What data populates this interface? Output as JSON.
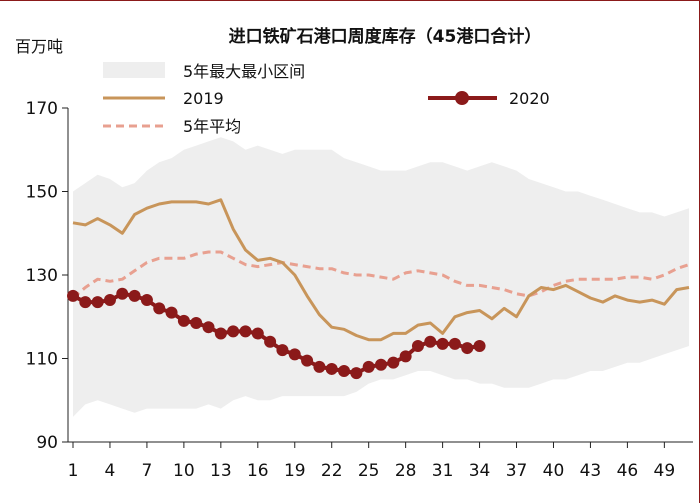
{
  "chart_data": {
    "type": "line",
    "title": "进口铁矿石港口周度库存（45港口合计）",
    "ylabel": "百万吨",
    "xlabel": "",
    "ylim": [
      90,
      170
    ],
    "y_ticks": [
      90,
      110,
      130,
      150,
      170
    ],
    "xlim": [
      1,
      51
    ],
    "x_ticks": [
      1,
      4,
      7,
      10,
      13,
      16,
      19,
      22,
      25,
      28,
      31,
      34,
      37,
      40,
      43,
      46,
      49
    ],
    "band": {
      "name": "5年最大最小区间",
      "color": "#eeeeee",
      "x": [
        1,
        2,
        3,
        4,
        5,
        6,
        7,
        8,
        9,
        10,
        11,
        12,
        13,
        14,
        15,
        16,
        17,
        18,
        19,
        20,
        21,
        22,
        23,
        24,
        25,
        26,
        27,
        28,
        29,
        30,
        31,
        32,
        33,
        34,
        35,
        36,
        37,
        38,
        39,
        40,
        41,
        42,
        43,
        44,
        45,
        46,
        47,
        48,
        49,
        50,
        51
      ],
      "upper": [
        150,
        152,
        154,
        153,
        151,
        152,
        155,
        157,
        158,
        160,
        161,
        162,
        163,
        162,
        160,
        161,
        160,
        159,
        160,
        160,
        160,
        160,
        158,
        157,
        156,
        155,
        155,
        155,
        156,
        157,
        157,
        156,
        155,
        156,
        157,
        156,
        155,
        153,
        152,
        151,
        150,
        150,
        149,
        148,
        147,
        146,
        145,
        145,
        144,
        145,
        146
      ],
      "lower": [
        96,
        99,
        100,
        99,
        98,
        97,
        98,
        98,
        98,
        98,
        98,
        99,
        98,
        100,
        101,
        100,
        100,
        101,
        101,
        101,
        101,
        101,
        101,
        102,
        104,
        105,
        105,
        106,
        107,
        107,
        106,
        105,
        105,
        104,
        104,
        103,
        103,
        103,
        104,
        105,
        105,
        106,
        107,
        107,
        108,
        109,
        109,
        110,
        111,
        112,
        113
      ]
    },
    "series": [
      {
        "name": "2019",
        "color": "#c8955a",
        "x": [
          1,
          2,
          3,
          4,
          5,
          6,
          7,
          8,
          9,
          10,
          11,
          12,
          13,
          14,
          15,
          16,
          17,
          18,
          19,
          20,
          21,
          22,
          23,
          24,
          25,
          26,
          27,
          28,
          29,
          30,
          31,
          32,
          33,
          34,
          35,
          36,
          37,
          38,
          39,
          40,
          41,
          42,
          43,
          44,
          45,
          46,
          47,
          48,
          49,
          50,
          51
        ],
        "values": [
          142.5,
          142,
          143.5,
          142,
          140,
          144.5,
          146,
          147,
          147.5,
          147.5,
          147.5,
          147,
          148,
          141,
          136,
          133.5,
          134,
          133,
          130,
          125,
          120.5,
          117.5,
          117,
          115.5,
          114.5,
          114.5,
          116,
          116,
          118,
          118.5,
          116,
          120,
          121,
          121.5,
          119.5,
          122,
          120,
          125,
          127,
          126.5,
          127.5,
          126,
          124.5,
          123.5,
          125,
          124,
          123.5,
          124,
          123,
          126.5,
          127
        ]
      },
      {
        "name": "2020",
        "color": "#8b1a1a",
        "x": [
          1,
          2,
          3,
          4,
          5,
          6,
          7,
          8,
          9,
          10,
          11,
          12,
          13,
          14,
          15,
          16,
          17,
          18,
          19,
          20,
          21,
          22,
          23,
          24,
          25,
          26,
          27,
          28,
          29,
          30,
          31,
          32,
          33,
          34
        ],
        "values": [
          125,
          123.5,
          123.5,
          124,
          125.5,
          125,
          124,
          122,
          121,
          119,
          118.5,
          117.5,
          116,
          116.5,
          116.5,
          116,
          114,
          112,
          111,
          109.5,
          108,
          107.5,
          107,
          106.5,
          108,
          108.5,
          109,
          110.5,
          113,
          114,
          113.5,
          113.5,
          112.5,
          113
        ]
      },
      {
        "name": "5年平均",
        "color": "#e8a090",
        "dashed": true,
        "x": [
          1,
          2,
          3,
          4,
          5,
          6,
          7,
          8,
          9,
          10,
          11,
          12,
          13,
          14,
          15,
          16,
          17,
          18,
          19,
          20,
          21,
          22,
          23,
          24,
          25,
          26,
          27,
          28,
          29,
          30,
          31,
          32,
          33,
          34,
          35,
          36,
          37,
          38,
          39,
          40,
          41,
          42,
          43,
          44,
          45,
          46,
          47,
          48,
          49,
          50,
          51
        ],
        "values": [
          124.5,
          127,
          129,
          128.5,
          129,
          131,
          133,
          134,
          134,
          134,
          135,
          135.5,
          135.5,
          134,
          132.5,
          132,
          132.5,
          133,
          132.5,
          132,
          131.5,
          131.5,
          130.5,
          130,
          130,
          129.5,
          129,
          130.5,
          131,
          130.5,
          130,
          128.5,
          127.5,
          127.5,
          127,
          126.5,
          125.5,
          125,
          126,
          127.5,
          128.5,
          129,
          129,
          129,
          129,
          129.5,
          129.5,
          129,
          130,
          131.5,
          132.5
        ]
      }
    ],
    "legend": {
      "band_label": "5年最大最小区间",
      "s2019_label": "2019",
      "s2020_label": "2020",
      "avg_label": "5年平均"
    }
  }
}
